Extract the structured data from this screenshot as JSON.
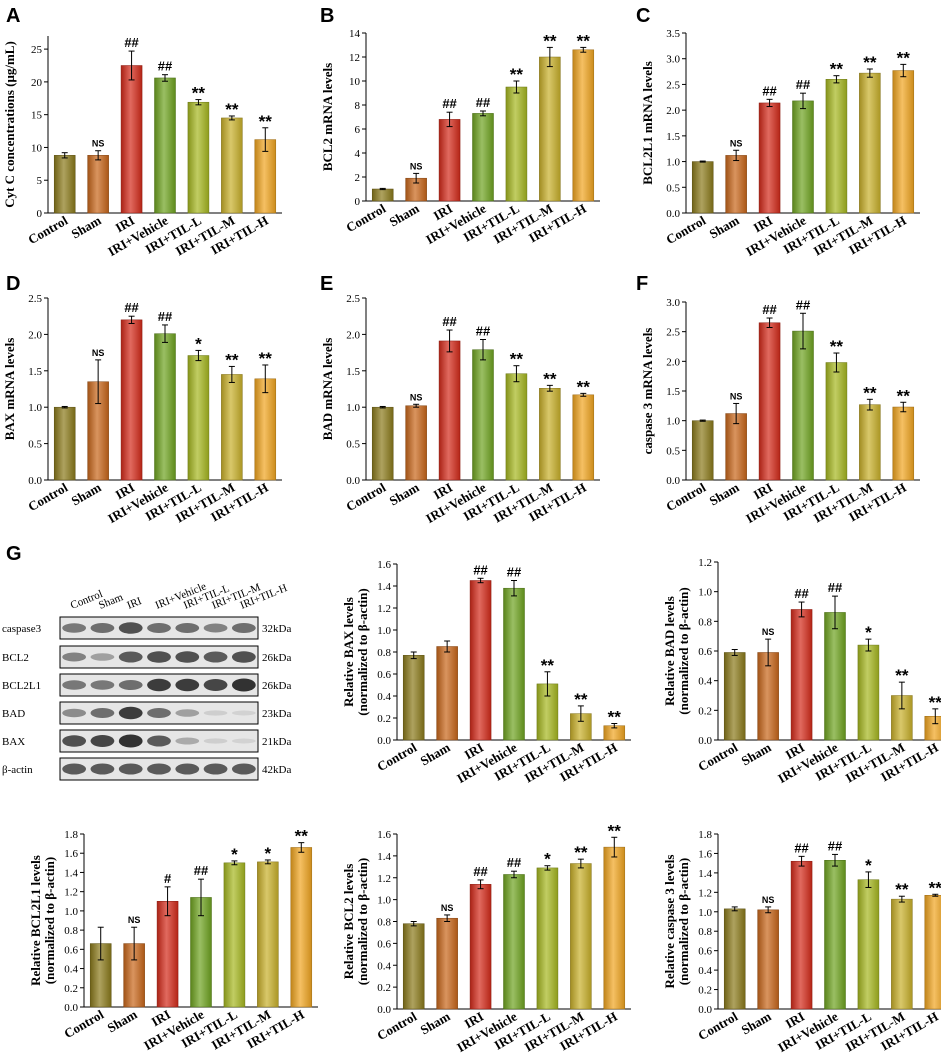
{
  "colors": [
    "#8B7A1B",
    "#C8661A",
    "#D42A1A",
    "#6FA420",
    "#A6B820",
    "#C9B02A",
    "#F0A520"
  ],
  "panel_letters": [
    "A",
    "B",
    "C",
    "D",
    "E",
    "F",
    "G"
  ],
  "chart_data": [
    {
      "id": "A",
      "type": "bar",
      "title": "",
      "ylabel": "Cyt C concentrations (μg/mL)",
      "ylabel2": "",
      "ylim": [
        0,
        27
      ],
      "yticks": [
        0,
        5,
        10,
        15,
        20,
        25
      ],
      "categories": [
        "Control",
        "Sham",
        "IRI",
        "IRI+Vehicle",
        "IRI+TIL-L",
        "IRI+TIL-M",
        "IRI+TIL-H"
      ],
      "values": [
        8.8,
        8.8,
        22.5,
        20.6,
        16.9,
        14.5,
        11.2
      ],
      "errors": [
        0.4,
        0.7,
        2.2,
        0.5,
        0.4,
        0.3,
        1.8
      ],
      "annotations": [
        "",
        "NS",
        "##",
        "##",
        "**",
        "**",
        "**"
      ]
    },
    {
      "id": "B",
      "type": "bar",
      "ylabel": "BCL2 mRNA levels",
      "ylabel2": "",
      "ylim": [
        0,
        14
      ],
      "yticks": [
        0,
        2,
        4,
        6,
        8,
        10,
        12,
        14
      ],
      "categories": [
        "Control",
        "Sham",
        "IRI",
        "IRI+Vehicle",
        "IRI+TIL-L",
        "IRI+TIL-M",
        "IRI+TIL-H"
      ],
      "values": [
        1.0,
        1.9,
        6.8,
        7.3,
        9.5,
        12.0,
        12.6
      ],
      "errors": [
        0.05,
        0.4,
        0.6,
        0.2,
        0.5,
        0.8,
        0.2
      ],
      "annotations": [
        "",
        "NS",
        "##",
        "##",
        "**",
        "**",
        "**"
      ]
    },
    {
      "id": "C",
      "type": "bar",
      "ylabel": "BCL2L1 mRNA levels",
      "ylabel2": "",
      "ylim": [
        0,
        3.5
      ],
      "yticks": [
        0.0,
        0.5,
        1.0,
        1.5,
        2.0,
        2.5,
        3.0,
        3.5
      ],
      "categories": [
        "Control",
        "Sham",
        "IRI",
        "IRI+Vehicle",
        "IRI+TIL-L",
        "IRI+TIL-M",
        "IRI+TIL-H"
      ],
      "values": [
        1.0,
        1.12,
        2.14,
        2.18,
        2.6,
        2.72,
        2.77
      ],
      "errors": [
        0.01,
        0.1,
        0.07,
        0.15,
        0.07,
        0.08,
        0.12
      ],
      "annotations": [
        "",
        "NS",
        "##",
        "##",
        "**",
        "**",
        "**"
      ]
    },
    {
      "id": "D",
      "type": "bar",
      "ylabel": "BAX mRNA levels",
      "ylabel2": "",
      "ylim": [
        0,
        2.5
      ],
      "yticks": [
        0.0,
        0.5,
        1.0,
        1.5,
        2.0,
        2.5
      ],
      "categories": [
        "Control",
        "Sham",
        "IRI",
        "IRI+Vehicle",
        "IRI+TIL-L",
        "IRI+TIL-M",
        "IRI+TIL-H"
      ],
      "values": [
        1.0,
        1.35,
        2.2,
        2.01,
        1.71,
        1.45,
        1.39
      ],
      "errors": [
        0.01,
        0.3,
        0.05,
        0.12,
        0.07,
        0.11,
        0.19
      ],
      "annotations": [
        "",
        "NS",
        "##",
        "##",
        "*",
        "**",
        "**"
      ]
    },
    {
      "id": "E",
      "type": "bar",
      "ylabel": "BAD mRNA levels",
      "ylabel2": "",
      "ylim": [
        0,
        2.5
      ],
      "yticks": [
        0.0,
        0.5,
        1.0,
        1.5,
        2.0,
        2.5
      ],
      "categories": [
        "Control",
        "Sham",
        "IRI",
        "IRI+Vehicle",
        "IRI+TIL-L",
        "IRI+TIL-M",
        "IRI+TIL-H"
      ],
      "values": [
        1.0,
        1.02,
        1.91,
        1.79,
        1.46,
        1.26,
        1.17
      ],
      "errors": [
        0.01,
        0.02,
        0.15,
        0.14,
        0.11,
        0.04,
        0.02
      ],
      "annotations": [
        "",
        "NS",
        "##",
        "##",
        "**",
        "**",
        "**"
      ]
    },
    {
      "id": "F",
      "type": "bar",
      "ylabel": "caspase 3 mRNA levels",
      "ylabel2": "",
      "ylim": [
        0,
        3.0
      ],
      "yticks": [
        0.0,
        0.5,
        1.0,
        1.5,
        2.0,
        2.5,
        3.0
      ],
      "categories": [
        "Control",
        "Sham",
        "IRI",
        "IRI+Vehicle",
        "IRI+TIL-L",
        "IRI+TIL-M",
        "IRI+TIL-H"
      ],
      "values": [
        1.0,
        1.12,
        2.65,
        2.51,
        1.98,
        1.27,
        1.23
      ],
      "errors": [
        0.01,
        0.17,
        0.08,
        0.3,
        0.16,
        0.09,
        0.08
      ],
      "annotations": [
        "",
        "NS",
        "##",
        "##",
        "**",
        "**",
        "**"
      ]
    },
    {
      "id": "G_BAX",
      "type": "bar",
      "ylabel": "Relative BAX levels",
      "ylabel2": "(normalized to β-actin)",
      "ylim": [
        0,
        1.6
      ],
      "yticks": [
        0.0,
        0.2,
        0.4,
        0.6,
        0.8,
        1.0,
        1.2,
        1.4,
        1.6
      ],
      "categories": [
        "Control",
        "Sham",
        "IRI",
        "IRI+Vehicle",
        "IRI+TIL-L",
        "IRI+TIL-M",
        "IRI+TIL-H"
      ],
      "values": [
        0.77,
        0.85,
        1.45,
        1.38,
        0.51,
        0.24,
        0.13
      ],
      "errors": [
        0.03,
        0.05,
        0.02,
        0.07,
        0.11,
        0.07,
        0.02
      ],
      "annotations": [
        "",
        "",
        "##",
        "##",
        "**",
        "**",
        "**"
      ]
    },
    {
      "id": "G_BAD",
      "type": "bar",
      "ylabel": "Relative BAD levels",
      "ylabel2": "(normalized to β-actin)",
      "ylim": [
        0,
        1.2
      ],
      "yticks": [
        0.0,
        0.2,
        0.4,
        0.6,
        0.8,
        1.0,
        1.2
      ],
      "categories": [
        "Control",
        "Sham",
        "IRI",
        "IRI+Vehicle",
        "IRI+TIL-L",
        "IRI+TIL-M",
        "IRI+TIL-H"
      ],
      "values": [
        0.59,
        0.59,
        0.88,
        0.86,
        0.64,
        0.3,
        0.16
      ],
      "errors": [
        0.02,
        0.09,
        0.05,
        0.11,
        0.04,
        0.09,
        0.05
      ],
      "annotations": [
        "",
        "NS",
        "##",
        "##",
        "*",
        "**",
        "**"
      ]
    },
    {
      "id": "G_BCL2L1",
      "type": "bar",
      "ylabel": "Relative BCL2L1 levels",
      "ylabel2": "(normalized to β-actin)",
      "ylim": [
        0,
        1.8
      ],
      "yticks": [
        0.0,
        0.2,
        0.4,
        0.6,
        0.8,
        1.0,
        1.2,
        1.4,
        1.6,
        1.8
      ],
      "categories": [
        "Control",
        "Sham",
        "IRI",
        "IRI+Vehicle",
        "IRI+TIL-L",
        "IRI+TIL-M",
        "IRI+TIL-H"
      ],
      "values": [
        0.66,
        0.66,
        1.1,
        1.14,
        1.5,
        1.51,
        1.66
      ],
      "errors": [
        0.17,
        0.17,
        0.15,
        0.19,
        0.02,
        0.02,
        0.05
      ],
      "annotations": [
        "",
        "NS",
        "#",
        "##",
        "*",
        "*",
        "**"
      ]
    },
    {
      "id": "G_BCL2",
      "type": "bar",
      "ylabel": "Relative BCL2 levels",
      "ylabel2": "(normalized to β-actin)",
      "ylim": [
        0,
        1.6
      ],
      "yticks": [
        0.0,
        0.2,
        0.4,
        0.6,
        0.8,
        1.0,
        1.2,
        1.4,
        1.6
      ],
      "categories": [
        "Control",
        "Sham",
        "IRI",
        "IRI+Vehicle",
        "IRI+TIL-L",
        "IRI+TIL-M",
        "IRI+TIL-H"
      ],
      "values": [
        0.78,
        0.83,
        1.14,
        1.23,
        1.29,
        1.33,
        1.48
      ],
      "errors": [
        0.02,
        0.03,
        0.04,
        0.03,
        0.02,
        0.04,
        0.09
      ],
      "annotations": [
        "",
        "NS",
        "##",
        "##",
        "*",
        "**",
        "**"
      ]
    },
    {
      "id": "G_casp3",
      "type": "bar",
      "ylabel": "Relative caspase 3 levels",
      "ylabel2": "(normalized to β-actin)",
      "ylim": [
        0,
        1.8
      ],
      "yticks": [
        0.0,
        0.2,
        0.4,
        0.6,
        0.8,
        1.0,
        1.2,
        1.4,
        1.6,
        1.8
      ],
      "categories": [
        "Control",
        "Sham",
        "IRI",
        "IRI+Vehicle",
        "IRI+TIL-L",
        "IRI+TIL-M",
        "IRI+TIL-H"
      ],
      "values": [
        1.03,
        1.02,
        1.52,
        1.53,
        1.33,
        1.13,
        1.17
      ],
      "errors": [
        0.02,
        0.03,
        0.05,
        0.06,
        0.08,
        0.03,
        0.01
      ],
      "annotations": [
        "",
        "NS",
        "##",
        "##",
        "*",
        "**",
        "**"
      ]
    }
  ],
  "blot": {
    "lanes": [
      "Control",
      "Sham",
      "IRI",
      "IRI+Vehicle",
      "IRI+TIL-L",
      "IRI+TIL-M",
      "IRI+TIL-H"
    ],
    "rows": [
      {
        "protein": "caspase3",
        "size": "32kDa",
        "intensities": [
          0.55,
          0.6,
          0.75,
          0.6,
          0.6,
          0.5,
          0.6
        ]
      },
      {
        "protein": "BCL2",
        "size": "26kDa",
        "intensities": [
          0.5,
          0.35,
          0.7,
          0.75,
          0.75,
          0.7,
          0.75
        ]
      },
      {
        "protein": "BCL2L1",
        "size": "26kDa",
        "intensities": [
          0.55,
          0.55,
          0.6,
          0.85,
          0.85,
          0.8,
          0.9
        ]
      },
      {
        "protein": "BAD",
        "size": "23kDa",
        "intensities": [
          0.45,
          0.6,
          0.85,
          0.6,
          0.35,
          0.12,
          0.1
        ]
      },
      {
        "protein": "BAX",
        "size": "21kDa",
        "intensities": [
          0.75,
          0.8,
          0.9,
          0.7,
          0.3,
          0.12,
          0.1
        ]
      },
      {
        "protein": "β-actin",
        "size": "42kDa",
        "intensities": [
          0.7,
          0.7,
          0.7,
          0.7,
          0.7,
          0.7,
          0.7
        ]
      }
    ]
  }
}
